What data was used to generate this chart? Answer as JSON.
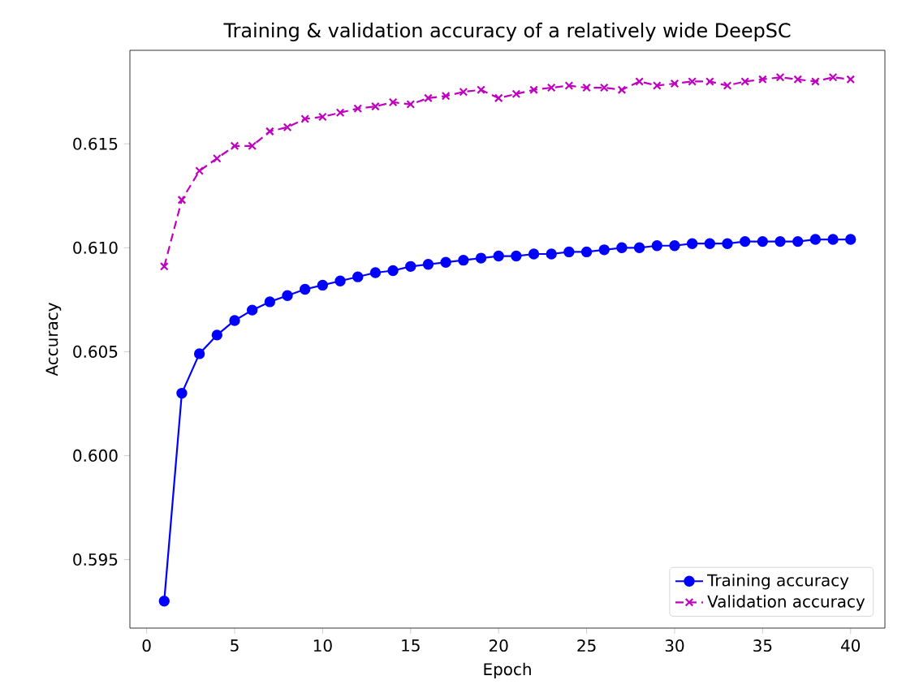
{
  "chart_data": {
    "type": "line",
    "title": "Training & validation accuracy of a relatively wide DeepSC",
    "xlabel": "Epoch",
    "ylabel": "Accuracy",
    "x": [
      1,
      2,
      3,
      4,
      5,
      6,
      7,
      8,
      9,
      10,
      11,
      12,
      13,
      14,
      15,
      16,
      17,
      18,
      19,
      20,
      21,
      22,
      23,
      24,
      25,
      26,
      27,
      28,
      29,
      30,
      31,
      32,
      33,
      34,
      35,
      36,
      37,
      38,
      39,
      40
    ],
    "series": [
      {
        "name": "Training accuracy",
        "color": "#0000ff",
        "marker": "circle",
        "line_style": "solid",
        "values": [
          0.593,
          0.603,
          0.6049,
          0.6058,
          0.6065,
          0.607,
          0.6074,
          0.6077,
          0.608,
          0.6082,
          0.6084,
          0.6086,
          0.6088,
          0.6089,
          0.6091,
          0.6092,
          0.6093,
          0.6094,
          0.6095,
          0.6096,
          0.6096,
          0.6097,
          0.6097,
          0.6098,
          0.6098,
          0.6099,
          0.61,
          0.61,
          0.6101,
          0.6101,
          0.6102,
          0.6102,
          0.6102,
          0.6103,
          0.6103,
          0.6103,
          0.6103,
          0.6104,
          0.6104,
          0.6104
        ]
      },
      {
        "name": "Validation accuracy",
        "color": "#bf00bf",
        "marker": "cross",
        "line_style": "dashed",
        "values": [
          0.6091,
          0.6123,
          0.6137,
          0.6143,
          0.6149,
          0.6149,
          0.6156,
          0.6158,
          0.6162,
          0.6163,
          0.6165,
          0.6167,
          0.6168,
          0.617,
          0.6169,
          0.6172,
          0.6173,
          0.6175,
          0.6176,
          0.6172,
          0.6174,
          0.6176,
          0.6177,
          0.6178,
          0.6177,
          0.6177,
          0.6176,
          0.618,
          0.6178,
          0.6179,
          0.618,
          0.618,
          0.6178,
          0.618,
          0.6181,
          0.6182,
          0.6181,
          0.618,
          0.6182,
          0.6181
        ]
      }
    ],
    "xlim": [
      -0.95,
      41.95
    ],
    "xticks": [
      0,
      5,
      10,
      15,
      20,
      25,
      30,
      35,
      40
    ],
    "ylim": [
      0.5917,
      0.6195
    ],
    "yticks": [
      {
        "value": 0.595,
        "label": "0.595"
      },
      {
        "value": 0.6,
        "label": "0.600"
      },
      {
        "value": 0.605,
        "label": "0.605"
      },
      {
        "value": 0.61,
        "label": "0.610"
      },
      {
        "value": 0.615,
        "label": "0.615"
      }
    ],
    "legend": "bottom right",
    "grid": false
  }
}
